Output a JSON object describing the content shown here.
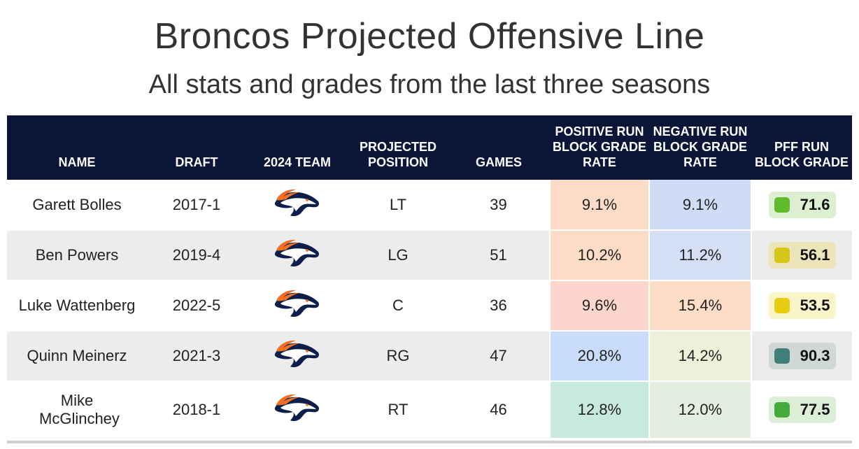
{
  "title": "Broncos Projected Offensive Line",
  "subtitle": "All stats and grades from the last three seasons",
  "columns": {
    "name": "NAME",
    "draft": "DRAFT",
    "team": "2024 TEAM",
    "position": "PROJECTED POSITION",
    "games": "GAMES",
    "positive": "POSITIVE RUN BLOCK GRADE RATE",
    "negative": "NEGATIVE RUN BLOCK GRADE RATE",
    "grade": "PFF RUN BLOCK GRADE"
  },
  "chart_data": {
    "type": "table",
    "title": "Broncos Projected Offensive Line",
    "subtitle": "All stats and grades from the last three seasons",
    "rows": [
      {
        "name": "Garett Bolles",
        "draft": "2017-1",
        "team_logo": "broncos-logo",
        "position": "LT",
        "games": 39,
        "positive": "9.1%",
        "negative": "9.1%",
        "grade": "71.6",
        "positive_color": "#fcdcc6",
        "negative_color": "#cfdcf5",
        "grade_color": "#5fbb2a",
        "grade_bg": "#dcefd0"
      },
      {
        "name": "Ben Powers",
        "draft": "2019-4",
        "team_logo": "broncos-logo",
        "position": "LG",
        "games": 51,
        "positive": "10.2%",
        "negative": "11.2%",
        "grade": "56.1",
        "positive_color": "#fcdcc6",
        "negative_color": "#d4def5",
        "grade_color": "#d6c618",
        "grade_bg": "#ebe5b9"
      },
      {
        "name": "Luke Wattenberg",
        "draft": "2022-5",
        "team_logo": "broncos-logo",
        "position": "C",
        "games": 36,
        "positive": "9.6%",
        "negative": "15.4%",
        "grade": "53.5",
        "positive_color": "#fcd6cc",
        "negative_color": "#fdddc8",
        "grade_color": "#e8cc12",
        "grade_bg": "#faf5c9"
      },
      {
        "name": "Quinn Meinerz",
        "draft": "2021-3",
        "team_logo": "broncos-logo",
        "position": "RG",
        "games": 47,
        "positive": "20.8%",
        "negative": "14.2%",
        "grade": "90.3",
        "positive_color": "#c9dcfb",
        "negative_color": "#eef0d9",
        "grade_color": "#3f7f77",
        "grade_bg": "#cfd8d6"
      },
      {
        "name": "Mike McGlinchey",
        "draft": "2018-1",
        "team_logo": "broncos-logo",
        "position": "RT",
        "games": 46,
        "positive": "12.8%",
        "negative": "12.0%",
        "grade": "77.5",
        "positive_color": "#c8e9e0",
        "negative_color": "#e4eede",
        "grade_color": "#43ab3c",
        "grade_bg": "#dcefd6"
      }
    ]
  }
}
